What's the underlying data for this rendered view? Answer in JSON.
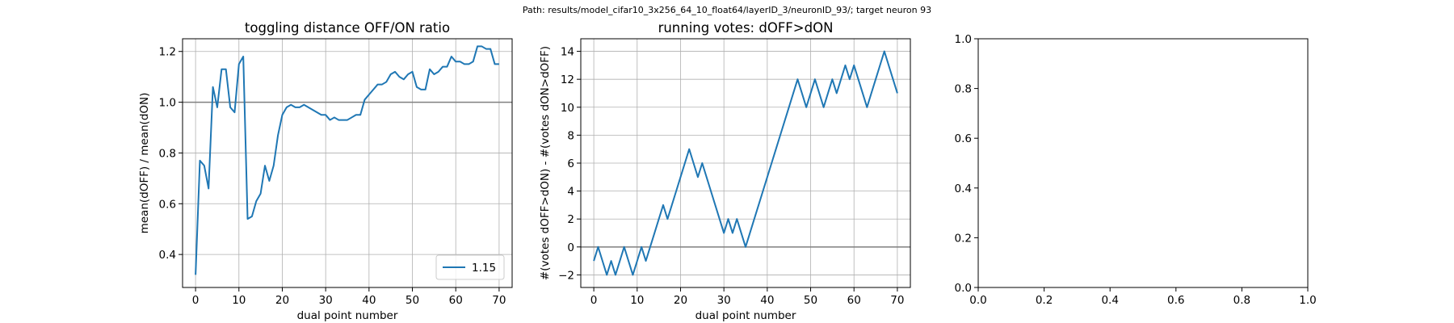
{
  "suptitle": "Path: results/model_cifar10_3x256_64_10_float64/layerID_3/neuronID_93/; target neuron 93",
  "colors": {
    "series": "#1f77b4",
    "refline": "#808080",
    "grid": "#b0b0b0",
    "axes": "#000000"
  },
  "chart_data": [
    {
      "type": "line",
      "title": "toggling distance OFF/ON ratio",
      "xlabel": "dual point number",
      "ylabel": "mean(dOFF) / mean(dON)",
      "xlim": [
        -3,
        73
      ],
      "ylim": [
        0.27,
        1.25
      ],
      "xticks": [
        0,
        10,
        20,
        30,
        40,
        50,
        60,
        70
      ],
      "yticks": [
        0.4,
        0.6,
        0.8,
        1.0,
        1.2
      ],
      "ytick_labels": [
        "0.4",
        "0.6",
        "0.8",
        "1.0",
        "1.2"
      ],
      "grid": true,
      "reference_line": 1.0,
      "legend": {
        "location": "lower-right",
        "entries": [
          "1.15"
        ]
      },
      "series": [
        {
          "name": "1.15",
          "x": [
            0,
            1,
            2,
            3,
            4,
            5,
            6,
            7,
            8,
            9,
            10,
            11,
            12,
            13,
            14,
            15,
            16,
            17,
            18,
            19,
            20,
            21,
            22,
            23,
            24,
            25,
            26,
            27,
            28,
            29,
            30,
            31,
            32,
            33,
            34,
            35,
            36,
            37,
            38,
            39,
            40,
            41,
            42,
            43,
            44,
            45,
            46,
            47,
            48,
            49,
            50,
            51,
            52,
            53,
            54,
            55,
            56,
            57,
            58,
            59,
            60,
            61,
            62,
            63,
            64,
            65,
            66,
            67,
            68,
            69,
            70
          ],
          "y": [
            0.32,
            0.77,
            0.75,
            0.66,
            1.06,
            0.98,
            1.13,
            1.13,
            0.98,
            0.96,
            1.15,
            1.18,
            0.54,
            0.55,
            0.61,
            0.64,
            0.75,
            0.69,
            0.75,
            0.87,
            0.95,
            0.98,
            0.99,
            0.98,
            0.98,
            0.99,
            0.98,
            0.97,
            0.96,
            0.95,
            0.95,
            0.93,
            0.94,
            0.93,
            0.93,
            0.93,
            0.94,
            0.95,
            0.95,
            1.01,
            1.03,
            1.05,
            1.07,
            1.07,
            1.08,
            1.11,
            1.12,
            1.1,
            1.09,
            1.11,
            1.12,
            1.06,
            1.05,
            1.05,
            1.13,
            1.11,
            1.12,
            1.14,
            1.14,
            1.18,
            1.16,
            1.16,
            1.15,
            1.15,
            1.16,
            1.22,
            1.22,
            1.21,
            1.21,
            1.15,
            1.15
          ]
        }
      ]
    },
    {
      "type": "line",
      "title": "running votes: dOFF>dON",
      "xlabel": "dual point number",
      "ylabel": "#(votes dOFF>dON) - #(votes dON>dOFF)",
      "xlim": [
        -3,
        73
      ],
      "ylim": [
        -2.9,
        14.9
      ],
      "xticks": [
        0,
        10,
        20,
        30,
        40,
        50,
        60,
        70
      ],
      "yticks": [
        -2,
        0,
        2,
        4,
        6,
        8,
        10,
        12,
        14
      ],
      "grid": true,
      "reference_line": 0,
      "series": [
        {
          "x": [
            0,
            1,
            2,
            3,
            4,
            5,
            6,
            7,
            8,
            9,
            10,
            11,
            12,
            13,
            14,
            15,
            16,
            17,
            18,
            19,
            20,
            21,
            22,
            23,
            24,
            25,
            26,
            27,
            28,
            29,
            30,
            31,
            32,
            33,
            34,
            35,
            36,
            37,
            38,
            39,
            40,
            41,
            42,
            43,
            44,
            45,
            46,
            47,
            48,
            49,
            50,
            51,
            52,
            53,
            54,
            55,
            56,
            57,
            58,
            59,
            60,
            61,
            62,
            63,
            64,
            65,
            66,
            67,
            68,
            69,
            70
          ],
          "y": [
            -1,
            0,
            -1,
            -2,
            -1,
            -2,
            -1,
            0,
            -1,
            -2,
            -1,
            0,
            -1,
            0,
            1,
            2,
            3,
            2,
            3,
            4,
            5,
            6,
            7,
            6,
            5,
            6,
            5,
            4,
            3,
            2,
            1,
            2,
            1,
            2,
            1,
            0,
            1,
            2,
            3,
            4,
            5,
            6,
            7,
            8,
            9,
            10,
            11,
            12,
            11,
            10,
            11,
            12,
            11,
            10,
            11,
            12,
            11,
            12,
            13,
            12,
            13,
            12,
            11,
            10,
            11,
            12,
            13,
            14,
            13,
            12,
            11
          ]
        }
      ]
    },
    {
      "type": "line",
      "title": "",
      "xlim": [
        0,
        1
      ],
      "ylim": [
        0,
        1
      ],
      "xticks": [
        0.0,
        0.2,
        0.4,
        0.6,
        0.8,
        1.0
      ],
      "yticks": [
        0.0,
        0.2,
        0.4,
        0.6,
        0.8,
        1.0
      ],
      "xtick_labels": [
        "0.0",
        "0.2",
        "0.4",
        "0.6",
        "0.8",
        "1.0"
      ],
      "ytick_labels": [
        "0.0",
        "0.2",
        "0.4",
        "0.6",
        "0.8",
        "1.0"
      ],
      "grid": false,
      "series": []
    }
  ]
}
